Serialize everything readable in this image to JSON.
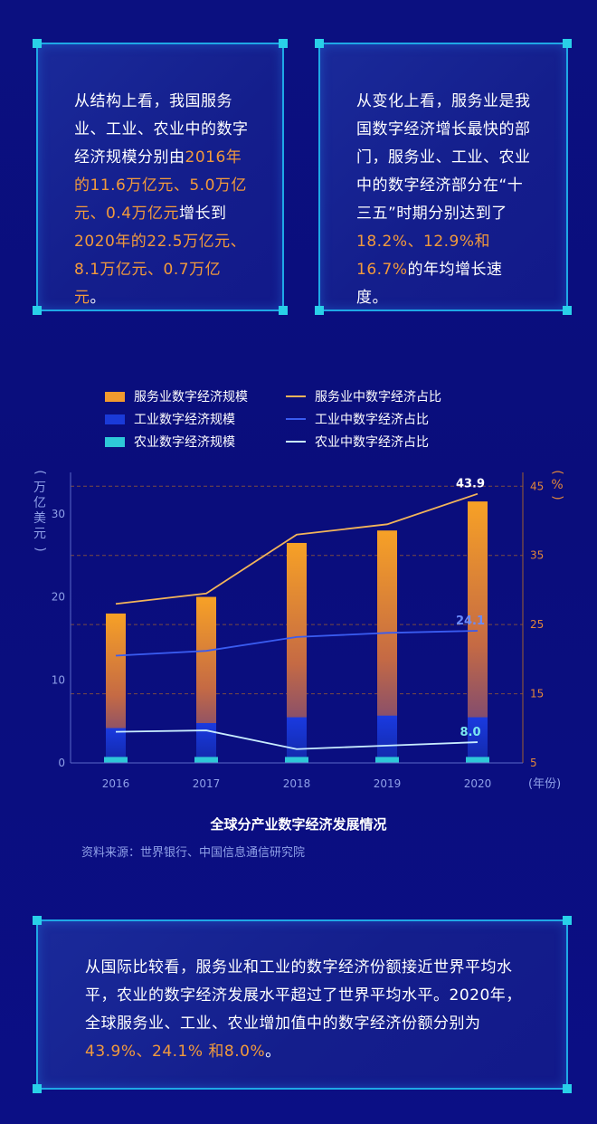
{
  "box1": {
    "parts": [
      {
        "t": "从结构上看，我国服务业、工业、农业中的数字经济规模分别由",
        "hl": false
      },
      {
        "t": "2016年的11.6万亿元、5.0万亿元、0.4万亿元",
        "hl": true
      },
      {
        "t": "增长到",
        "hl": false
      },
      {
        "t": "2020年的22.5万亿元、8.1万亿元、0.7万亿元",
        "hl": true
      },
      {
        "t": "。",
        "hl": false
      }
    ]
  },
  "box2": {
    "parts": [
      {
        "t": "从变化上看，服务业是我国数字经济增长最快的部门，服务业、工业、农业中的数字经济部分在“十三五”时期分别达到了",
        "hl": false
      },
      {
        "t": "18.2%、12.9%和16.7%",
        "hl": true
      },
      {
        "t": "的年均增长速度。",
        "hl": false
      }
    ]
  },
  "box3": {
    "parts": [
      {
        "t": "从国际比较看，服务业和工业的数字经济份额接近世界平均水平，农业的数字经济发展水平超过了世界平均水平。2020年，全球服务业、工业、农业增加值中的数字经济份额分别为",
        "hl": false
      },
      {
        "t": "43.9%、24.1% 和8.0%",
        "hl": true
      },
      {
        "t": "。",
        "hl": false
      }
    ]
  },
  "legend": {
    "bar_services": "服务业数字经济规模",
    "bar_industry": "工业数字经济规模",
    "bar_agri": "农业数字经济规模",
    "line_services": "服务业中数字经济占比",
    "line_industry": "工业中数字经济占比",
    "line_agri": "农业中数字经济占比"
  },
  "chart_data": {
    "type": "bar",
    "title": "全球分产业数字经济发展情况",
    "source": "资料来源：世界银行、中国信息通信研究院",
    "categories": [
      "2016",
      "2017",
      "2018",
      "2019",
      "2020"
    ],
    "xlabel": "(年份)",
    "ylabel": "(万亿美元)",
    "ylabel_right": "(%)",
    "ylim": [
      0,
      35
    ],
    "y_ticks": [
      0,
      10,
      20,
      30
    ],
    "ylim_right": [
      5,
      47
    ],
    "y_ticks_right": [
      5,
      15,
      25,
      35,
      45
    ],
    "series": [
      {
        "name": "服务业数字经济规模",
        "kind": "bar",
        "values": [
          18.0,
          20.0,
          26.5,
          28.0,
          31.5
        ],
        "color": "#f29a2e"
      },
      {
        "name": "工业数字经济规模",
        "kind": "bar",
        "values": [
          4.2,
          4.8,
          5.5,
          5.7,
          5.5
        ],
        "color": "#1a3ad8"
      },
      {
        "name": "农业数字经济规模",
        "kind": "bar",
        "values": [
          0.5,
          0.5,
          0.5,
          0.5,
          0.5
        ],
        "color": "#2ec8d8"
      },
      {
        "name": "服务业中数字经济占比",
        "kind": "line",
        "axis": "right",
        "values": [
          28.0,
          29.5,
          38.0,
          39.5,
          43.9
        ],
        "color": "#f2b45a"
      },
      {
        "name": "工业中数字经济占比",
        "kind": "line",
        "axis": "right",
        "values": [
          20.5,
          21.2,
          23.2,
          23.8,
          24.1
        ],
        "color": "#3a5cf0"
      },
      {
        "name": "农业中数字经济占比",
        "kind": "line",
        "axis": "right",
        "values": [
          9.5,
          9.7,
          7.0,
          7.5,
          8.0
        ],
        "color": "#c8ecff"
      }
    ],
    "data_labels": [
      "43.9",
      "24.1",
      "8.0"
    ],
    "grid": "dashed-horizontal",
    "legend_position": "top"
  },
  "colors": {
    "background": "#0a0c78",
    "border": "#1fa8e6",
    "highlight": "#f29a3c",
    "right_axis": "#e0863a",
    "left_axis": "#8fa0e8"
  }
}
